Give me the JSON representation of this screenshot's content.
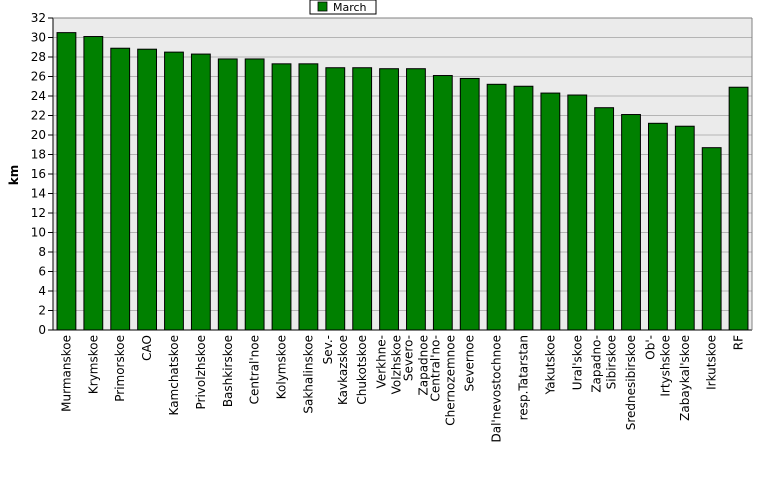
{
  "chart_data": {
    "type": "bar",
    "title": "",
    "xlabel": "",
    "ylabel": "km",
    "ylim": [
      0,
      32
    ],
    "ytick_step": 2,
    "grid": "horizontal",
    "legend_position": "top-center",
    "bar_color": "#008000",
    "plot_background": "#ebebeb",
    "categories": [
      "Murmanskoe",
      "Krymskoe",
      "Primorskoe",
      "CAO",
      "Kamchatskoe",
      "Privolzhskoe",
      "Bashkirskoe",
      "Central'noe",
      "Kolymskoe",
      "Sakhalinskoe",
      "Sev.-Kavkazskoe",
      "Chukotskoe",
      "Verkhne-Volzhskoe",
      "Severo-Zapadnoe",
      "Central'no-Chernozemnoe",
      "Severnoe",
      "Dal'nevostochnoe",
      "resp.Tatarstan",
      "Yakutskoe",
      "Ural'skoe",
      "Zapadno-Sibirskoe",
      "Srednesibirskoe",
      "Ob'-Irtyshskoe",
      "Zabaykal'skoe",
      "Irkutskoe",
      "RF"
    ],
    "tick_labels": [
      [
        "Murmanskoe"
      ],
      [
        "Krymskoe"
      ],
      [
        "Primorskoe"
      ],
      [
        "CAO"
      ],
      [
        "Kamchatskoe"
      ],
      [
        "Privolzhskoe"
      ],
      [
        "Bashkirskoe"
      ],
      [
        "Central'noe"
      ],
      [
        "Kolymskoe"
      ],
      [
        "Sakhalinskoe"
      ],
      [
        "Sev.-",
        "Kavkazskoe"
      ],
      [
        "Chukotskoe"
      ],
      [
        "Verkhne-",
        "Volzhskoe"
      ],
      [
        "Severo-",
        "Zapadnoe"
      ],
      [
        "Central'no-",
        "Chernozemnoe"
      ],
      [
        "Severnoe"
      ],
      [
        "Dal'nevostochnoe"
      ],
      [
        "resp.Tatarstan"
      ],
      [
        "Yakutskoe"
      ],
      [
        "Ural'skoe"
      ],
      [
        "Zapadno-",
        "Sibirskoe"
      ],
      [
        "Srednesibirskoe"
      ],
      [
        "Ob'-",
        "Irtyshskoe"
      ],
      [
        "Zabaykal'skoe"
      ],
      [
        "Irkutskoe"
      ],
      [
        "RF"
      ]
    ],
    "series": [
      {
        "name": "March",
        "values": [
          30.5,
          30.1,
          28.9,
          28.8,
          28.5,
          28.3,
          27.8,
          27.8,
          27.3,
          27.3,
          26.9,
          26.9,
          26.8,
          26.8,
          26.1,
          25.8,
          25.2,
          25.0,
          24.3,
          24.1,
          22.8,
          22.1,
          21.2,
          20.9,
          18.7,
          24.9
        ]
      }
    ]
  }
}
